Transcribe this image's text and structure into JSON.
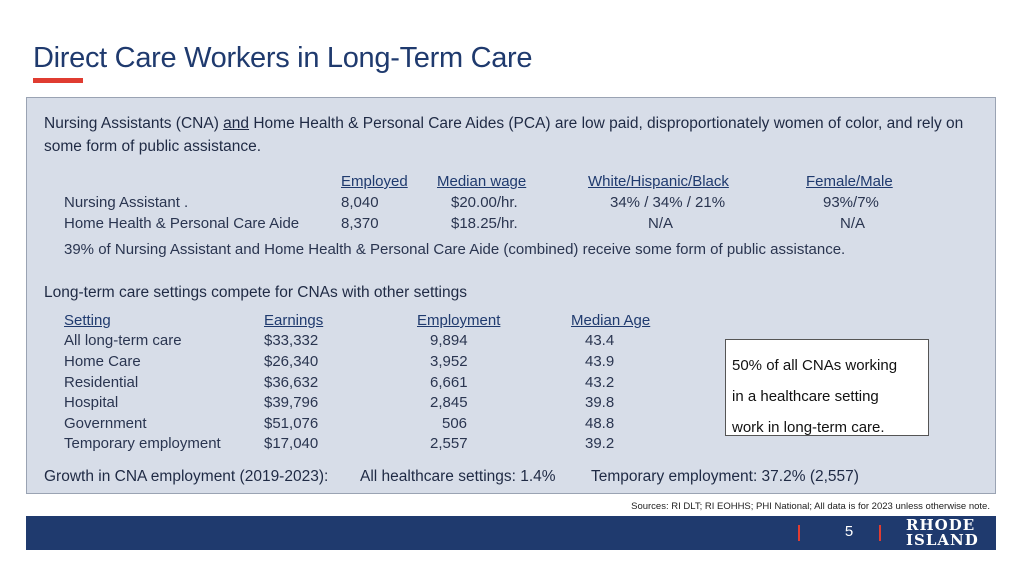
{
  "title": "Direct Care Workers in Long-Term Care",
  "intro": {
    "part1": "Nursing Assistants (CNA) ",
    "and": "and",
    "part2": " Home Health & Personal Care Aides (PCA) are low paid, disproportionately women of color, and rely on some form of public assistance."
  },
  "workers_table": {
    "headers": [
      "Employed",
      "Median wage",
      "White/Hispanic/Black",
      "Female/Male"
    ],
    "rows": [
      {
        "label": "Nursing Assistant .",
        "employed": "8,040",
        "wage": "$20.00/hr.",
        "race": "34% / 34% / 21%",
        "gender": "93%/7%"
      },
      {
        "label": "Home Health & Personal Care Aide",
        "employed": "8,370",
        "wage": "$18.25/hr.",
        "race": "N/A",
        "gender": "N/A"
      }
    ],
    "note": "39% of Nursing Assistant and Home Health & Personal Care Aide (combined) receive some form of public assistance."
  },
  "settings": {
    "heading": "Long-term care settings compete for CNAs with other settings",
    "headers": [
      "Setting",
      "Earnings",
      "Employment",
      "Median Age"
    ],
    "rows": [
      {
        "setting": "All long-term care",
        "earnings": "$33,332",
        "employment": "9,894",
        "age": "43.4"
      },
      {
        "setting": "Home Care",
        "earnings": "$26,340",
        "employment": "3,952",
        "age": "43.9"
      },
      {
        "setting": "Residential",
        "earnings": "$36,632",
        "employment": "6,661",
        "age": "43.2"
      },
      {
        "setting": "Hospital",
        "earnings": "$39,796",
        "employment": "2,845",
        "age": "39.8"
      },
      {
        "setting": "Government",
        "earnings": "$51,076",
        "employment": "506",
        "age": "48.8"
      },
      {
        "setting": "Temporary employment",
        "earnings": "$17,040",
        "employment": "2,557",
        "age": "39.2"
      }
    ]
  },
  "callout": {
    "lines": [
      "50% of all CNAs working",
      "in a healthcare setting",
      "work in long-term care."
    ]
  },
  "growth": {
    "label": "Growth in CNA employment (2019-2023):",
    "all": "All healthcare settings: 1.4%",
    "temp": "Temporary employment:  37.2%  (2,557)"
  },
  "sources": "Sources:  RI DLT; RI EOHHS; PHI National;  All data is for 2023 unless otherwise note.",
  "footer": {
    "page_number": "5",
    "logo_line1": "RHODE",
    "logo_line2": "ISLAND"
  },
  "colors": {
    "title": "#1f3a6e",
    "accent_red": "#e03c31",
    "panel": "#d7dde8",
    "footer": "#1f3a6e"
  }
}
